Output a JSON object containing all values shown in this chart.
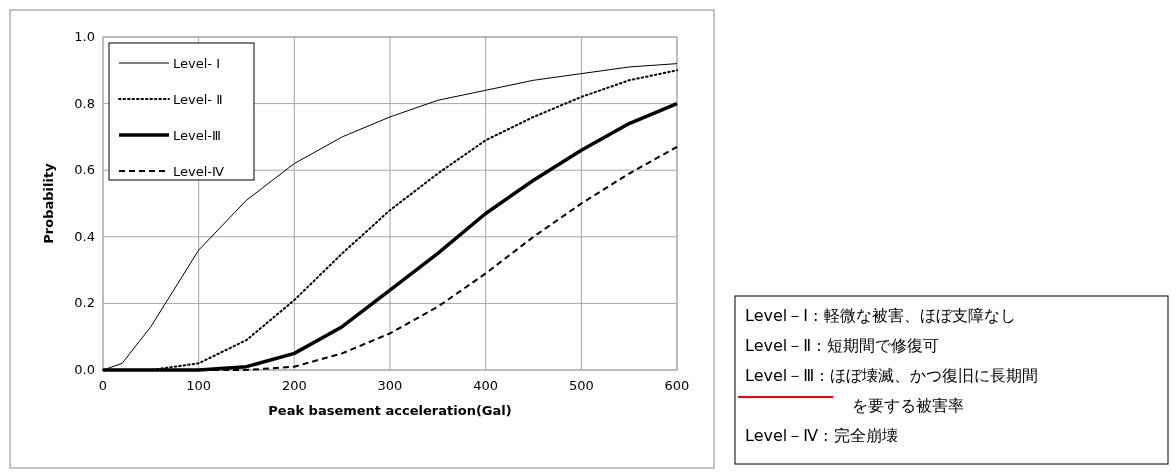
{
  "chart_data": {
    "type": "line",
    "xlabel": "Peak basement acceleration(Gal)",
    "ylabel": "Probability",
    "x": [
      0,
      50,
      100,
      150,
      200,
      250,
      300,
      350,
      400,
      450,
      500,
      550,
      600
    ],
    "series": [
      {
        "name": "Level- Ⅰ",
        "color": "#000000",
        "line_style": "solid",
        "x": [
          0,
          20,
          50,
          100,
          150,
          200,
          250,
          300,
          350,
          400,
          450,
          500,
          550,
          600
        ],
        "values": [
          0,
          0.02,
          0.13,
          0.36,
          0.51,
          0.62,
          0.7,
          0.76,
          0.81,
          0.84,
          0.87,
          0.89,
          0.91,
          0.92
        ]
      },
      {
        "name": "Level- Ⅱ",
        "color": "#000000",
        "line_style": "dotted",
        "values": [
          0,
          0,
          0.02,
          0.09,
          0.21,
          0.35,
          0.48,
          0.59,
          0.69,
          0.76,
          0.82,
          0.87,
          0.9
        ]
      },
      {
        "name": "Level-Ⅲ",
        "color": "#000000",
        "line_style": "solid",
        "values": [
          0,
          0,
          0,
          0.01,
          0.05,
          0.13,
          0.24,
          0.35,
          0.47,
          0.57,
          0.66,
          0.74,
          0.8
        ]
      },
      {
        "name": "Level-Ⅳ",
        "color": "#000000",
        "line_style": "dashed",
        "values": [
          0,
          0,
          0,
          0,
          0.01,
          0.05,
          0.11,
          0.19,
          0.29,
          0.4,
          0.5,
          0.59,
          0.67
        ]
      }
    ],
    "xlim": [
      0,
      600
    ],
    "xticks": [
      0,
      100,
      200,
      300,
      400,
      500,
      600
    ],
    "ylim": [
      0,
      1
    ],
    "yticks": [
      {
        "value": 0,
        "label": "0.0"
      },
      {
        "value": 0.2,
        "label": "0.2"
      },
      {
        "value": 0.4,
        "label": "0.4"
      },
      {
        "value": 0.6,
        "label": "0.6"
      },
      {
        "value": 0.8,
        "label": "0.8"
      },
      {
        "value": 1,
        "label": "1.0"
      }
    ],
    "grid": true,
    "legend": "top left",
    "annotations": [
      "Level－Ⅰ : 軽微な被害、ほぼ支障なし",
      "Level－Ⅱ : 短期間で修復可",
      "Level－Ⅲ : ほぼ壊滅、かつ復旧に長期間",
      "を要する被害率",
      "Level－Ⅳ : 完全崩壊"
    ]
  }
}
